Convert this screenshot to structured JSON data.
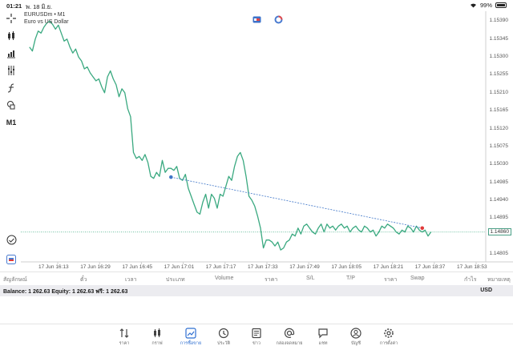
{
  "status_bar": {
    "time": "01:21",
    "date": "พ. 18 มิ.ย.",
    "battery": "99%"
  },
  "chart": {
    "symbol": "EURUSDm • M1",
    "description": "Euro vs US Dollar",
    "timeframe_label": "M1",
    "current_price": "1.14860",
    "line_color": "#3aa980",
    "trendline_color": "#3f76c8"
  },
  "chart_data": {
    "type": "line",
    "symbol": "EURUSDm",
    "timeframe": "M1",
    "y_ticks": [
      1.1539,
      1.15345,
      1.153,
      1.15255,
      1.1521,
      1.15165,
      1.1512,
      1.15075,
      1.1503,
      1.14985,
      1.1494,
      1.14895,
      1.1486,
      1.14805
    ],
    "x_ticks": [
      "17 Jun 16:13",
      "17 Jun 16:29",
      "17 Jun 16:45",
      "17 Jun 17:01",
      "17 Jun 17:17",
      "17 Jun 17:33",
      "17 Jun 17:49",
      "17 Jun 18:05",
      "17 Jun 18:21",
      "17 Jun 18:37",
      "17 Jun 18:53"
    ],
    "ylim": [
      1.14785,
      1.15415
    ],
    "xlim": [
      -3,
      158
    ],
    "current_price": 1.1486,
    "series": [
      {
        "x": [
          0,
          1,
          2,
          3,
          4,
          5,
          6,
          7,
          8,
          9,
          10,
          11,
          12,
          13,
          14,
          15,
          16,
          17,
          18,
          19,
          20,
          21,
          22,
          23,
          24,
          25,
          26,
          27,
          28,
          29,
          30,
          31,
          32,
          33,
          34,
          35,
          36,
          37,
          38,
          39,
          40,
          41,
          42,
          43,
          44,
          45,
          46,
          47,
          48,
          49,
          50,
          51,
          52,
          53,
          54,
          55,
          56,
          57,
          58,
          59,
          60,
          61,
          62,
          63,
          64,
          65,
          66,
          67,
          68,
          69,
          70,
          71,
          72,
          73,
          74,
          75,
          76,
          77,
          78,
          79,
          80,
          81,
          82,
          83,
          84,
          85,
          86,
          87,
          88,
          89,
          90,
          91,
          92,
          93,
          94,
          95,
          96,
          97,
          98,
          99,
          100,
          101,
          102,
          103,
          104,
          105,
          106,
          107,
          108,
          109,
          110,
          111,
          112,
          113,
          114,
          115,
          116,
          117,
          118,
          119,
          120,
          121,
          122,
          123,
          124,
          125,
          126,
          127,
          128,
          129,
          130,
          131,
          132,
          133,
          134,
          135,
          136,
          137,
          138,
          139
        ],
        "values": [
          1.15325,
          1.15315,
          1.15345,
          1.15365,
          1.1536,
          1.15375,
          1.15385,
          1.1539,
          1.15382,
          1.1537,
          1.1538,
          1.1536,
          1.1534,
          1.15345,
          1.15325,
          1.1531,
          1.1532,
          1.153,
          1.1529,
          1.1527,
          1.15275,
          1.1526,
          1.1525,
          1.1524,
          1.15245,
          1.15225,
          1.1521,
          1.1525,
          1.15265,
          1.15245,
          1.1523,
          1.152,
          1.1522,
          1.1521,
          1.1517,
          1.1515,
          1.1506,
          1.15045,
          1.1505,
          1.1504,
          1.15055,
          1.15035,
          1.15,
          1.14995,
          1.1501,
          1.15,
          1.1504,
          1.1501,
          1.1502,
          1.1502,
          1.15015,
          1.15025,
          1.14995,
          1.1499,
          1.15005,
          1.1497,
          1.1495,
          1.1493,
          1.1491,
          1.14905,
          1.14935,
          1.14955,
          1.1492,
          1.14955,
          1.14945,
          1.1492,
          1.14955,
          1.1495,
          1.14975,
          1.15,
          1.1499,
          1.15025,
          1.1505,
          1.1506,
          1.1504,
          1.15,
          1.1495,
          1.1494,
          1.14925,
          1.149,
          1.1487,
          1.1482,
          1.1484,
          1.1484,
          1.14835,
          1.14825,
          1.14835,
          1.14815,
          1.1482,
          1.14835,
          1.1484,
          1.14855,
          1.1485,
          1.1487,
          1.14855,
          1.14875,
          1.1488,
          1.1487,
          1.1486,
          1.14855,
          1.1487,
          1.1488,
          1.1486,
          1.1488,
          1.1487,
          1.14875,
          1.14865,
          1.14875,
          1.1488,
          1.1487,
          1.14875,
          1.1486,
          1.1487,
          1.14875,
          1.14865,
          1.1486,
          1.14875,
          1.1487,
          1.1486,
          1.14865,
          1.1485,
          1.1486,
          1.14875,
          1.1487,
          1.1488,
          1.14875,
          1.1487,
          1.1486,
          1.14855,
          1.14865,
          1.1486,
          1.14875,
          1.1487,
          1.1486,
          1.14875,
          1.14865,
          1.1486,
          1.14865,
          1.1485,
          1.1486
        ]
      }
    ],
    "trendline": {
      "x": [
        49,
        136
      ],
      "y": [
        1.14998,
        1.1487
      ],
      "start_color": "#3f76c8",
      "end_color": "#e03a3a"
    }
  },
  "trade_table": {
    "headers": [
      "สัญลักษณ์",
      "ตั๋ว",
      "เวลา",
      "ประเภท",
      "Volume",
      "ราคา",
      "S/L",
      "T/P",
      "ราคา",
      "Swap",
      "กำไร",
      "หมายเหตุ"
    ]
  },
  "account": {
    "balance_text": "Balance: 1 262.63 Equity: 1 262.63 ฟรี: 1 262.63",
    "currency": "USD"
  },
  "nav": {
    "items": [
      {
        "label": "ราคา",
        "icon": "quotes-icon"
      },
      {
        "label": "กราฟ",
        "icon": "chart-icon"
      },
      {
        "label": "การซื้อขาย",
        "icon": "trade-icon"
      },
      {
        "label": "ประวัติ",
        "icon": "history-icon"
      },
      {
        "label": "ข่าว",
        "icon": "news-icon"
      },
      {
        "label": "กล่องจดหมาย",
        "icon": "mailbox-icon"
      },
      {
        "label": "แชท",
        "icon": "chat-icon"
      },
      {
        "label": "บัญชี",
        "icon": "account-icon"
      },
      {
        "label": "การตั้งค่า",
        "icon": "settings-icon"
      }
    ]
  }
}
